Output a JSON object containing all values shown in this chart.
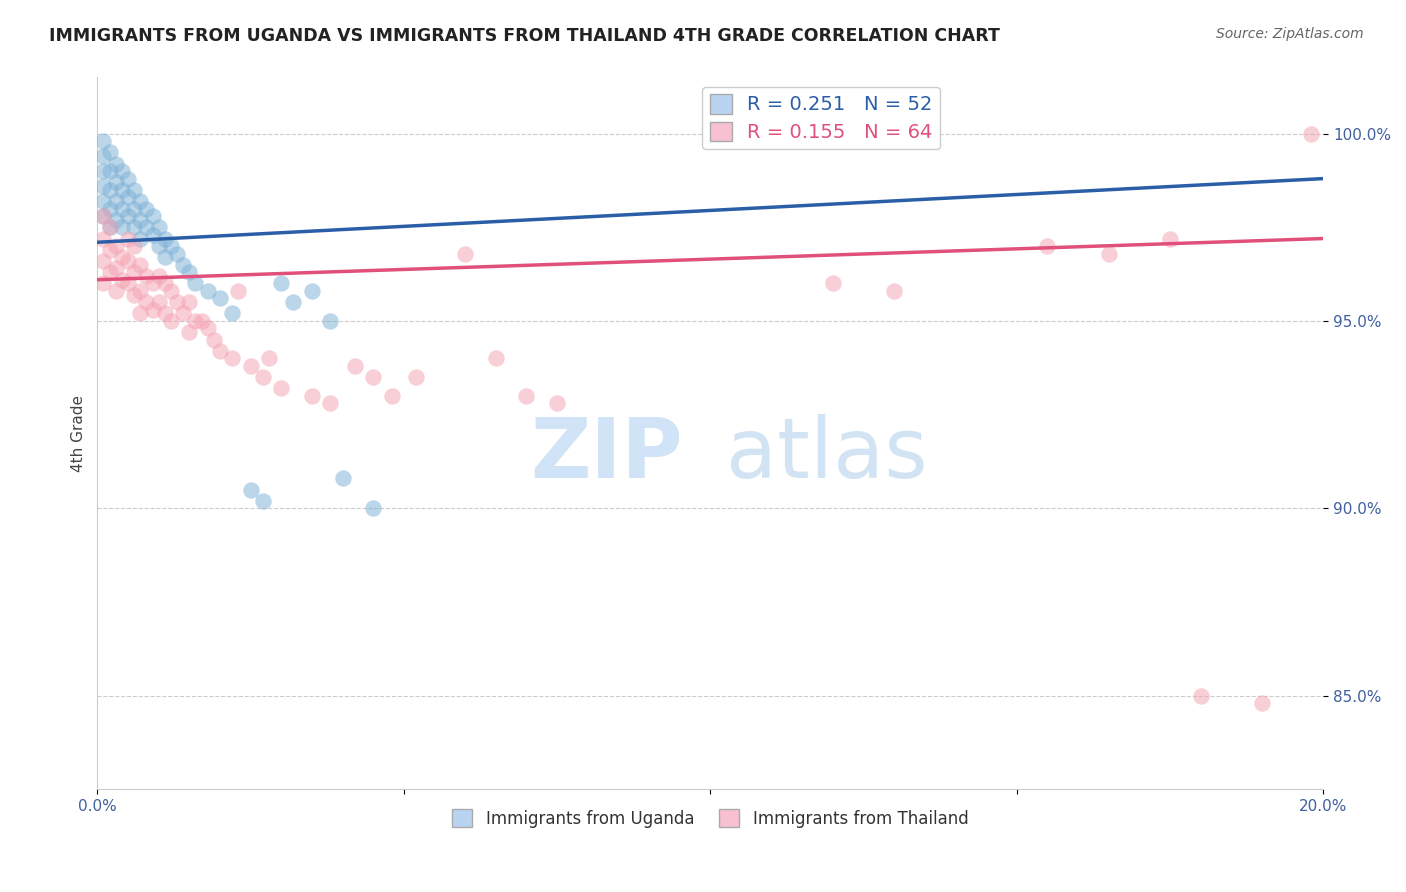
{
  "title": "IMMIGRANTS FROM UGANDA VS IMMIGRANTS FROM THAILAND 4TH GRADE CORRELATION CHART",
  "source": "Source: ZipAtlas.com",
  "ylabel": "4th Grade",
  "xlim": [
    0.0,
    0.2
  ],
  "ylim": [
    0.825,
    1.015
  ],
  "xtick_vals": [
    0.0,
    0.05,
    0.1,
    0.15,
    0.2
  ],
  "xtick_labels": [
    "0.0%",
    "",
    "",
    "",
    "20.0%"
  ],
  "ytick_vals": [
    0.85,
    0.9,
    0.95,
    1.0
  ],
  "ytick_labels": [
    "85.0%",
    "90.0%",
    "95.0%",
    "100.0%"
  ],
  "grid_color": "#cccccc",
  "background_color": "#ffffff",
  "uganda_color": "#7bafd4",
  "thailand_color": "#f4a0b0",
  "uganda_line_color": "#2a5fa8",
  "thailand_line_color": "#e0507a",
  "uganda_R": 0.251,
  "uganda_N": 52,
  "thailand_R": 0.155,
  "thailand_N": 64,
  "legend_fill_uganda": "#b8d4f0",
  "legend_fill_thailand": "#f8c0d0",
  "watermark_color_zip": "#cce0f5",
  "watermark_color_atlas": "#c0d8f0",
  "uganda_x": [
    0.001,
    0.001,
    0.001,
    0.001,
    0.001,
    0.001,
    0.002,
    0.002,
    0.002,
    0.002,
    0.002,
    0.003,
    0.003,
    0.003,
    0.003,
    0.004,
    0.004,
    0.004,
    0.004,
    0.005,
    0.005,
    0.005,
    0.006,
    0.006,
    0.006,
    0.007,
    0.007,
    0.007,
    0.008,
    0.008,
    0.009,
    0.009,
    0.01,
    0.01,
    0.011,
    0.011,
    0.012,
    0.013,
    0.014,
    0.015,
    0.016,
    0.018,
    0.02,
    0.022,
    0.025,
    0.027,
    0.03,
    0.032,
    0.035,
    0.038,
    0.04,
    0.045
  ],
  "uganda_y": [
    0.998,
    0.994,
    0.99,
    0.986,
    0.982,
    0.978,
    0.995,
    0.99,
    0.985,
    0.98,
    0.975,
    0.992,
    0.987,
    0.982,
    0.977,
    0.99,
    0.985,
    0.98,
    0.975,
    0.988,
    0.983,
    0.978,
    0.985,
    0.98,
    0.975,
    0.982,
    0.977,
    0.972,
    0.98,
    0.975,
    0.978,
    0.973,
    0.975,
    0.97,
    0.972,
    0.967,
    0.97,
    0.968,
    0.965,
    0.963,
    0.96,
    0.958,
    0.956,
    0.952,
    0.905,
    0.902,
    0.96,
    0.955,
    0.958,
    0.95,
    0.908,
    0.9
  ],
  "thailand_x": [
    0.001,
    0.001,
    0.001,
    0.001,
    0.002,
    0.002,
    0.002,
    0.003,
    0.003,
    0.003,
    0.004,
    0.004,
    0.005,
    0.005,
    0.005,
    0.006,
    0.006,
    0.006,
    0.007,
    0.007,
    0.007,
    0.008,
    0.008,
    0.009,
    0.009,
    0.01,
    0.01,
    0.011,
    0.011,
    0.012,
    0.012,
    0.013,
    0.014,
    0.015,
    0.015,
    0.016,
    0.017,
    0.018,
    0.019,
    0.02,
    0.022,
    0.023,
    0.025,
    0.027,
    0.028,
    0.03,
    0.035,
    0.038,
    0.042,
    0.045,
    0.048,
    0.052,
    0.06,
    0.065,
    0.07,
    0.075,
    0.12,
    0.13,
    0.155,
    0.165,
    0.175,
    0.18,
    0.19,
    0.198
  ],
  "thailand_y": [
    0.978,
    0.972,
    0.966,
    0.96,
    0.975,
    0.969,
    0.963,
    0.97,
    0.964,
    0.958,
    0.967,
    0.961,
    0.972,
    0.966,
    0.96,
    0.97,
    0.963,
    0.957,
    0.965,
    0.958,
    0.952,
    0.962,
    0.955,
    0.96,
    0.953,
    0.962,
    0.955,
    0.96,
    0.952,
    0.958,
    0.95,
    0.955,
    0.952,
    0.955,
    0.947,
    0.95,
    0.95,
    0.948,
    0.945,
    0.942,
    0.94,
    0.958,
    0.938,
    0.935,
    0.94,
    0.932,
    0.93,
    0.928,
    0.938,
    0.935,
    0.93,
    0.935,
    0.968,
    0.94,
    0.93,
    0.928,
    0.96,
    0.958,
    0.97,
    0.968,
    0.972,
    0.85,
    0.848,
    1.0
  ]
}
